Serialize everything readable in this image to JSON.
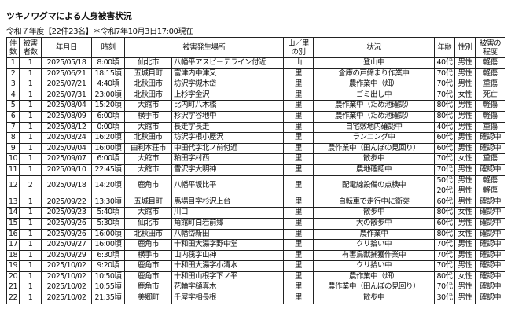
{
  "title": "ツキノワグマによる人身被害状況",
  "subtitle": "令和７年度【22件23名】＊令和7年10月3日17:00現在",
  "headers": [
    "件\n数",
    "被害\n者数",
    "年月日",
    "時刻",
    "被害発生場所",
    "山／里\nの別",
    "状況",
    "年齢",
    "性別",
    "被害の\n程度"
  ],
  "rows": [
    {
      "no": "1",
      "n": "1",
      "date": "2025/05/18",
      "time": "8:00頃",
      "city": "仙北市",
      "place": "八幡平アスピーテライン付近",
      "area": "山",
      "situation": "登山中",
      "victims": [
        {
          "age": "40代",
          "sex": "男性",
          "degree": "軽傷"
        }
      ]
    },
    {
      "no": "2",
      "n": "1",
      "date": "2025/06/21",
      "time": "18:15頃",
      "city": "五城目町",
      "place": "富津内中津又",
      "area": "里",
      "situation": "倉庫の戸締まり作業中",
      "victims": [
        {
          "age": "70代",
          "sex": "男性",
          "degree": "軽傷"
        }
      ]
    },
    {
      "no": "3",
      "n": "1",
      "date": "2025/07/21",
      "time": "4:40頃",
      "city": "北秋田市",
      "place": "坊沢字槻木岱",
      "area": "里",
      "situation": "農作業中（畑）",
      "victims": [
        {
          "age": "70代",
          "sex": "男性",
          "degree": "重傷"
        }
      ]
    },
    {
      "no": "4",
      "n": "1",
      "date": "2025/07/31",
      "time": "23:00頃",
      "city": "北秋田市",
      "place": "上杉字金沢",
      "area": "里",
      "situation": "ゴミ出し中",
      "victims": [
        {
          "age": "70代",
          "sex": "女性",
          "degree": "死亡"
        }
      ]
    },
    {
      "no": "5",
      "n": "1",
      "date": "2025/08/04",
      "time": "15:20頃",
      "city": "大館市",
      "place": "比内町八木橋",
      "area": "里",
      "situation": "農作業中（ため池確認）",
      "victims": [
        {
          "age": "80代",
          "sex": "男性",
          "degree": "軽傷"
        }
      ]
    },
    {
      "no": "6",
      "n": "1",
      "date": "2025/08/09",
      "time": "6:00頃",
      "city": "横手市",
      "place": "杉沢字谷地中",
      "area": "里",
      "situation": "農作業中（ため池確認）",
      "victims": [
        {
          "age": "80代",
          "sex": "男性",
          "degree": "軽傷"
        }
      ]
    },
    {
      "no": "7",
      "n": "1",
      "date": "2025/08/12",
      "time": "0:00頃",
      "city": "大館市",
      "place": "長走字長走",
      "area": "里",
      "situation": "自宅敷地内確認中",
      "victims": [
        {
          "age": "40代",
          "sex": "男性",
          "degree": "重傷"
        }
      ]
    },
    {
      "no": "8",
      "n": "1",
      "date": "2025/08/24",
      "time": "16:20頃",
      "city": "北秋田市",
      "place": "坊沢字根小屋沢",
      "area": "里",
      "situation": "ランニング中",
      "victims": [
        {
          "age": "60代",
          "sex": "男性",
          "degree": "確認中"
        }
      ]
    },
    {
      "no": "9",
      "n": "1",
      "date": "2025/09/04",
      "time": "16:00頃",
      "city": "由利本荘市",
      "place": "中田代字北ノ前付近",
      "area": "里",
      "situation": "農作業中（田んぼの見回り）",
      "victims": [
        {
          "age": "60代",
          "sex": "男性",
          "degree": "確認中"
        }
      ]
    },
    {
      "no": "10",
      "n": "1",
      "date": "2025/09/07",
      "time": "6:00頃",
      "city": "大館市",
      "place": "粕田字村西",
      "area": "里",
      "situation": "散歩中",
      "victims": [
        {
          "age": "70代",
          "sex": "女性",
          "degree": "重傷"
        }
      ]
    },
    {
      "no": "11",
      "n": "1",
      "date": "2025/09/10",
      "time": "22:45頃",
      "city": "大館市",
      "place": "雪沢字大明神",
      "area": "里",
      "situation": "農地確認中",
      "victims": [
        {
          "age": "70代",
          "sex": "男性",
          "degree": "確認中"
        }
      ]
    },
    {
      "no": "12",
      "n": "2",
      "date": "2025/09/18",
      "time": "14:20頃",
      "city": "鹿角市",
      "place": "八幡平坂比平",
      "area": "里",
      "situation": "配電線設備の点検中",
      "victims": [
        {
          "age": "50代",
          "sex": "男性",
          "degree": "軽傷"
        },
        {
          "age": "20代",
          "sex": "男性",
          "degree": "軽傷"
        }
      ]
    },
    {
      "no": "13",
      "n": "1",
      "date": "2025/09/22",
      "time": "13:30頃",
      "city": "五城目町",
      "place": "馬場目字杉沢上台",
      "area": "里",
      "situation": "自転車で走行中に衝突",
      "victims": [
        {
          "age": "60代",
          "sex": "男性",
          "degree": "確認中"
        }
      ]
    },
    {
      "no": "14",
      "n": "1",
      "date": "2025/09/23",
      "time": "5:40頃",
      "city": "大館市",
      "place": "川口",
      "area": "里",
      "situation": "散歩中",
      "victims": [
        {
          "age": "80代",
          "sex": "女性",
          "degree": "確認中"
        }
      ]
    },
    {
      "no": "15",
      "n": "1",
      "date": "2025/09/26",
      "time": "5:30頃",
      "city": "仙北市",
      "place": "角館町白岩前郷",
      "area": "里",
      "situation": "犬の散歩中",
      "victims": [
        {
          "age": "60代",
          "sex": "男性",
          "degree": "確認中"
        }
      ]
    },
    {
      "no": "16",
      "n": "1",
      "date": "2025/09/26",
      "time": "16:00頃",
      "city": "北秋田市",
      "place": "八幡岱新田",
      "area": "里",
      "situation": "農作業中",
      "victims": [
        {
          "age": "80代",
          "sex": "女性",
          "degree": "確認中"
        }
      ]
    },
    {
      "no": "17",
      "n": "1",
      "date": "2025/09/27",
      "time": "16:00頃",
      "city": "鹿角市",
      "place": "十和田大湯字野中堂",
      "area": "里",
      "situation": "クリ拾い中",
      "victims": [
        {
          "age": "70代",
          "sex": "男性",
          "degree": "確認中"
        }
      ]
    },
    {
      "no": "18",
      "n": "1",
      "date": "2025/09/29",
      "time": "6:30頃",
      "city": "横手市",
      "place": "山内筏字山神",
      "area": "里",
      "situation": "有害鳥獣捕獲作業中",
      "victims": [
        {
          "age": "70代",
          "sex": "男性",
          "degree": "確認中"
        }
      ]
    },
    {
      "no": "19",
      "n": "1",
      "date": "2025/10/02",
      "time": "9:20頃",
      "city": "鹿角市",
      "place": "十和田大湯字小清水",
      "area": "里",
      "situation": "クリ拾い中",
      "victims": [
        {
          "age": "70代",
          "sex": "男性",
          "degree": "確認中"
        }
      ]
    },
    {
      "no": "20",
      "n": "1",
      "date": "2025/10/02",
      "time": "10:50頃",
      "city": "鹿角市",
      "place": "十和田山根字下ノ平",
      "area": "里",
      "situation": "農作業中（畑）",
      "victims": [
        {
          "age": "80代",
          "sex": "女性",
          "degree": "確認中"
        }
      ]
    },
    {
      "no": "21",
      "n": "1",
      "date": "2025/10/02",
      "time": "10:55頃",
      "city": "鹿角市",
      "place": "花輪字樋真木",
      "area": "里",
      "situation": "農作業中（田んぼの見回り）",
      "victims": [
        {
          "age": "70代",
          "sex": "男性",
          "degree": "確認中"
        }
      ]
    },
    {
      "no": "22",
      "n": "1",
      "date": "2025/10/02",
      "time": "21:35頃",
      "city": "美郷町",
      "place": "千屋字相長根",
      "area": "里",
      "situation": "散歩中",
      "victims": [
        {
          "age": "30代",
          "sex": "男性",
          "degree": "確認中"
        }
      ]
    }
  ]
}
